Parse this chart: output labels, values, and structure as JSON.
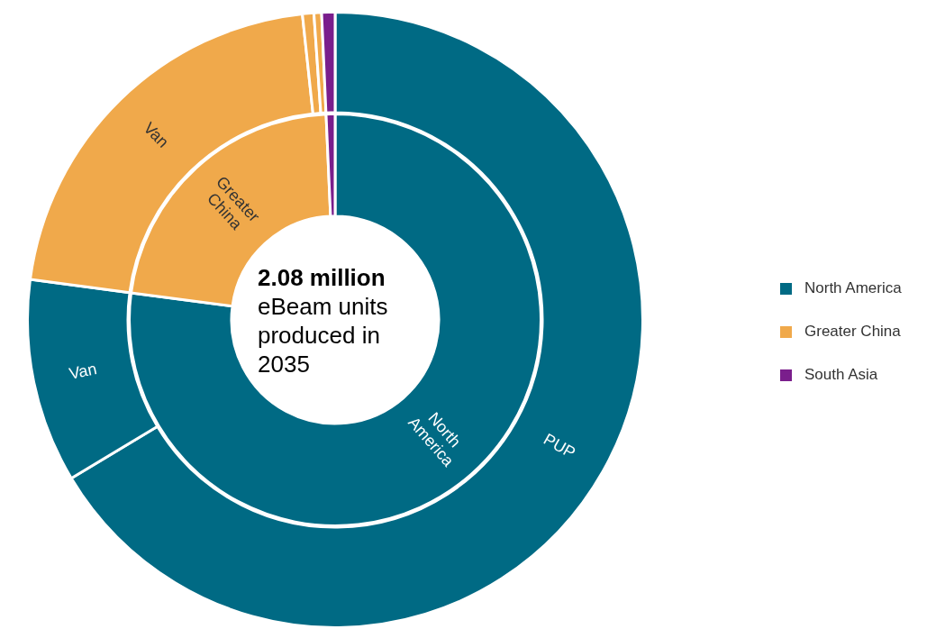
{
  "chart_data": [
    {
      "type": "donut",
      "categories": [
        "PUP",
        "Van",
        "Van",
        null,
        null,
        null
      ],
      "values": [
        66.4,
        10.7,
        21.2,
        0.6,
        0.4,
        0.7
      ],
      "colors": [
        "#006a84",
        "#006a84",
        "#f0a94b",
        "#f0a94b",
        "#f0a94b",
        "#7a1e8c"
      ]
    },
    {
      "type": "donut",
      "title": "2.08 million",
      "subtitle": "eBeam units produced in 2035",
      "categories": [
        "North America",
        "Greater China",
        "South Asia"
      ],
      "values": [
        77.1,
        22.2,
        0.7
      ],
      "colors": [
        "#006a84",
        "#f0a94b",
        "#7a1e8c"
      ],
      "legend": "right"
    }
  ]
}
